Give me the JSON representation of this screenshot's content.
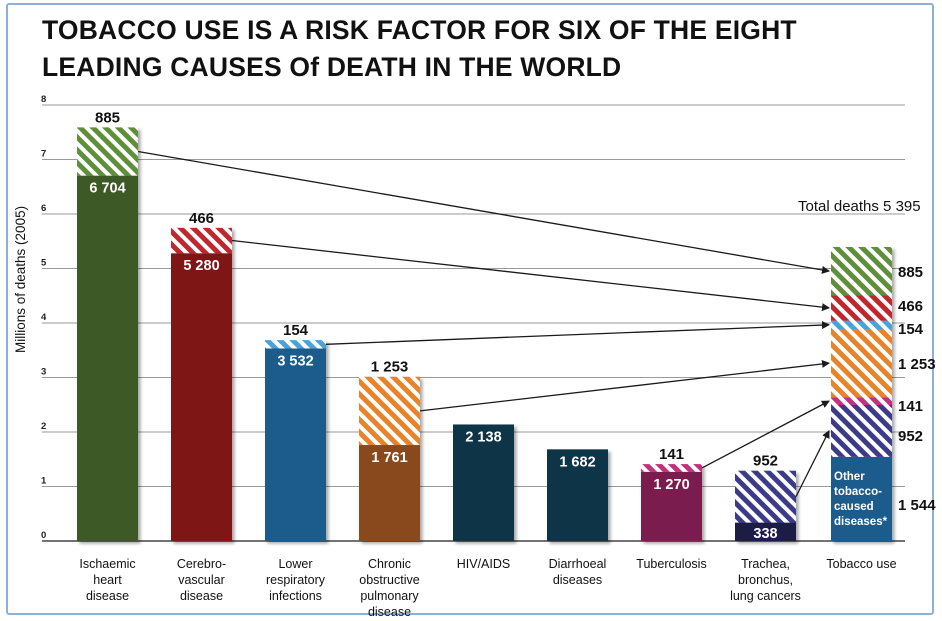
{
  "title_line1": "TOBACCO USE IS A RISK FACTOR FOR SIX OF THE EIGHT",
  "title_line2": "LEADING CAUSES Of DEATH IN THE WORLD",
  "chart_data": {
    "type": "bar",
    "ylabel": "Millions of deaths (2005)",
    "ylim": [
      0,
      8
    ],
    "yticks": [
      0,
      1,
      2,
      3,
      4,
      5,
      6,
      7,
      8
    ],
    "grid": true,
    "colors": {
      "ischaemic": "#3c5a25",
      "ischaemic_tobacco": "#5f8f3a",
      "cerebro": "#7e1518",
      "cerebro_tobacco": "#c0282d",
      "respiratory": "#1e5b8c",
      "respiratory_tobacco": "#4aa3d8",
      "copd": "#8a4a1c",
      "copd_tobacco": "#e8832a",
      "hiv": "#0f3646",
      "diarrhoeal": "#0f3646",
      "tb": "#7a1b4e",
      "tb_tobacco": "#c0307b",
      "lung": "#1b1a45",
      "lung_tobacco": "#3a3a8a",
      "other_tobacco": "#1e5b8c"
    },
    "bars": [
      {
        "category": "Ischaemic heart disease",
        "label_lines": [
          "Ischaemic",
          "heart",
          "disease"
        ],
        "base": 6.704,
        "base_label": "6 704",
        "tobacco": 0.885,
        "tobacco_label": "885",
        "base_color": "ischaemic",
        "tobacco_color": "ischaemic_tobacco"
      },
      {
        "category": "Cerebrovascular disease",
        "label_lines": [
          "Cerebro-",
          "vascular",
          "disease"
        ],
        "base": 5.28,
        "base_label": "5 280",
        "tobacco": 0.466,
        "tobacco_label": "466",
        "base_color": "cerebro",
        "tobacco_color": "cerebro_tobacco"
      },
      {
        "category": "Lower respiratory infections",
        "label_lines": [
          "Lower",
          "respiratory",
          "infections"
        ],
        "base": 3.532,
        "base_label": "3 532",
        "tobacco": 0.154,
        "tobacco_label": "154",
        "base_color": "respiratory",
        "tobacco_color": "respiratory_tobacco"
      },
      {
        "category": "Chronic obstructive pulmonary disease",
        "label_lines": [
          "Chronic",
          "obstructive",
          "pulmonary",
          "disease"
        ],
        "base": 1.761,
        "base_label": "1 761",
        "tobacco": 1.253,
        "tobacco_label": "1 253",
        "base_color": "copd",
        "tobacco_color": "copd_tobacco"
      },
      {
        "category": "HIV/AIDS",
        "label_lines": [
          "HIV/AIDS"
        ],
        "base": 2.138,
        "base_label": "2 138",
        "tobacco": 0,
        "tobacco_label": "",
        "base_color": "hiv",
        "tobacco_color": "hiv"
      },
      {
        "category": "Diarrhoeal diseases",
        "label_lines": [
          "Diarrhoeal",
          "diseases"
        ],
        "base": 1.682,
        "base_label": "1 682",
        "tobacco": 0,
        "tobacco_label": "",
        "base_color": "diarrhoeal",
        "tobacco_color": "diarrhoeal"
      },
      {
        "category": "Tuberculosis",
        "label_lines": [
          "Tuberculosis"
        ],
        "base": 1.27,
        "base_label": "1 270",
        "tobacco": 0.141,
        "tobacco_label": "141",
        "base_color": "tb",
        "tobacco_color": "tb_tobacco"
      },
      {
        "category": "Trachea, bronchus, lung cancers",
        "label_lines": [
          "Trachea,",
          "bronchus,",
          "lung cancers"
        ],
        "base": 0.338,
        "base_label": "338",
        "tobacco": 0.952,
        "tobacco_label": "952",
        "base_color": "lung",
        "tobacco_color": "lung_tobacco"
      }
    ],
    "tobacco_use": {
      "category": "Tobacco use",
      "total_label": "Total deaths 5 395",
      "other_label_lines": [
        "Other",
        "tobacco-",
        "caused",
        "diseases*"
      ],
      "segments": [
        {
          "name": "Other tobacco-caused diseases",
          "value": 1.544,
          "label": "1 544",
          "color": "other_tobacco",
          "hatched": false
        },
        {
          "name": "Trachea, bronchus, lung cancers",
          "value": 0.952,
          "label": "952",
          "color": "lung_tobacco",
          "hatched": true
        },
        {
          "name": "Tuberculosis",
          "value": 0.141,
          "label": "141",
          "color": "tb_tobacco",
          "hatched": true
        },
        {
          "name": "Chronic obstructive pulmonary disease",
          "value": 1.253,
          "label": "1 253",
          "color": "copd_tobacco",
          "hatched": true
        },
        {
          "name": "Lower respiratory infections",
          "value": 0.154,
          "label": "154",
          "color": "respiratory_tobacco",
          "hatched": true
        },
        {
          "name": "Cerebrovascular disease",
          "value": 0.466,
          "label": "466",
          "color": "cerebro_tobacco",
          "hatched": true
        },
        {
          "name": "Ischaemic heart disease",
          "value": 0.885,
          "label": "885",
          "color": "ischaemic_tobacco",
          "hatched": true
        }
      ]
    }
  }
}
